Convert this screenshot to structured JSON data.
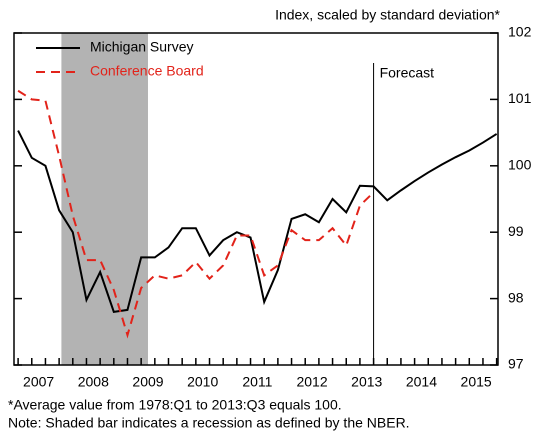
{
  "chart_data": {
    "type": "line",
    "title": "Index, scaled by standard deviation*",
    "notes": [
      "*Average value from 1978:Q1 to 2013:Q3 equals 100.",
      "Note: Shaded bar indicates a recession as defined by the NBER."
    ],
    "x": [
      2007.125,
      2007.375,
      2007.625,
      2007.875,
      2008.125,
      2008.375,
      2008.625,
      2008.875,
      2009.125,
      2009.375,
      2009.625,
      2009.875,
      2010.125,
      2010.375,
      2010.625,
      2010.875,
      2011.125,
      2011.375,
      2011.625,
      2011.875,
      2012.125,
      2012.375,
      2012.625,
      2012.875,
      2013.125,
      2013.375,
      2013.625,
      2013.875,
      2014.125,
      2014.375,
      2014.625,
      2014.875,
      2015.125,
      2015.375,
      2015.625,
      2015.875
    ],
    "series": [
      {
        "name": "Michigan Survey",
        "color": "#000000",
        "dash": false,
        "values": [
          100.53,
          100.12,
          100.0,
          99.33,
          99.0,
          97.98,
          98.4,
          97.8,
          97.83,
          98.62,
          98.62,
          98.77,
          99.06,
          99.06,
          98.65,
          98.88,
          99.0,
          98.92,
          97.95,
          98.43,
          99.2,
          99.27,
          99.15,
          99.5,
          99.3,
          99.7,
          99.69,
          99.48,
          99.63,
          99.77,
          99.9,
          100.02,
          100.13,
          100.23,
          100.35,
          100.48
        ]
      },
      {
        "name": "Conference Board",
        "color": "#e2231a",
        "dash": true,
        "values": [
          101.13,
          101.0,
          100.98,
          100.15,
          99.25,
          98.58,
          98.58,
          98.13,
          97.45,
          98.16,
          98.35,
          98.3,
          98.35,
          98.55,
          98.3,
          98.5,
          98.95,
          98.95,
          98.35,
          98.5,
          99.03,
          98.88,
          98.88,
          99.06,
          98.8,
          99.4,
          99.6,
          null,
          null,
          null,
          null,
          null,
          null,
          null,
          null,
          null
        ]
      }
    ],
    "recession": [
      2007.917,
      2009.5
    ],
    "forecast_start": 2013.625,
    "forecast_label": "Forecast",
    "xlim": [
      2007.05,
      2015.9
    ],
    "xticks": [
      {
        "value": 2007.5,
        "label": "2007"
      },
      {
        "value": 2008.5,
        "label": "2008"
      },
      {
        "value": 2009.5,
        "label": "2009"
      },
      {
        "value": 2010.5,
        "label": "2010"
      },
      {
        "value": 2011.5,
        "label": "2011"
      },
      {
        "value": 2012.5,
        "label": "2012"
      },
      {
        "value": 2013.5,
        "label": "2013"
      },
      {
        "value": 2014.5,
        "label": "2014"
      },
      {
        "value": 2015.5,
        "label": "2015"
      }
    ],
    "ylim": [
      97,
      102
    ],
    "yticks": [
      97,
      98,
      99,
      100,
      101,
      102
    ],
    "legend": "upper left"
  }
}
